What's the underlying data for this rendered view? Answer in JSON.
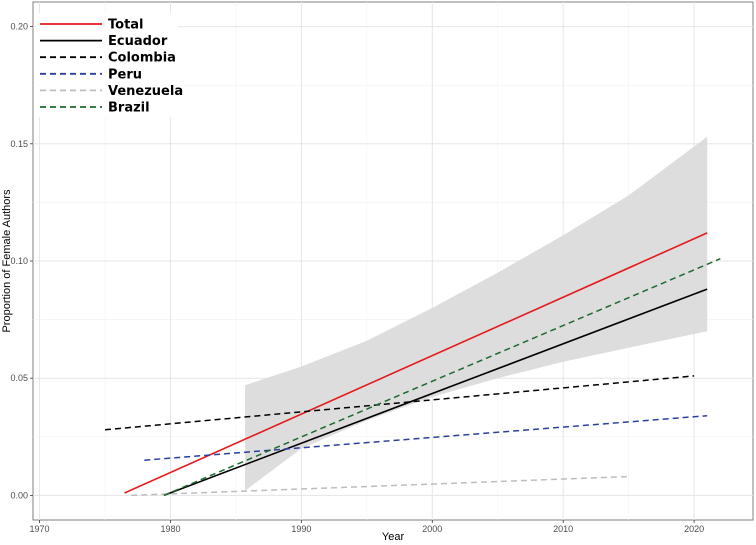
{
  "chart_data": {
    "type": "line",
    "xlabel": "Year",
    "ylabel": "Proportion of Female Authors",
    "xlim": [
      1969.5,
      2024.5
    ],
    "ylim": [
      -0.0105,
      0.2105
    ],
    "x_ticks": [
      1970,
      1980,
      1990,
      2000,
      2010,
      2020
    ],
    "x_tick_labels": [
      "1970",
      "1980",
      "1990",
      "2000",
      "2010",
      "2020"
    ],
    "y_ticks": [
      0.0,
      0.05,
      0.1,
      0.15,
      0.2
    ],
    "y_tick_labels": [
      "0.00",
      "0.05",
      "0.10",
      "0.15",
      "0.20"
    ],
    "grid": true,
    "legend_position": "top-left",
    "confidence_band": {
      "series": "Ecuador",
      "color": "#d9d9d9",
      "x": [
        1985.7,
        1990,
        1995,
        2000,
        2005,
        2010,
        2015,
        2021
      ],
      "upper": [
        0.047,
        0.055,
        0.066,
        0.08,
        0.095,
        0.111,
        0.128,
        0.153
      ],
      "lower": [
        0.002,
        0.02,
        0.032,
        0.042,
        0.05,
        0.057,
        0.063,
        0.07
      ]
    },
    "series": [
      {
        "name": "Total",
        "color": "#e41a1c",
        "dash": "solid",
        "x": [
          1976.5,
          2021
        ],
        "y": [
          0.001,
          0.112
        ]
      },
      {
        "name": "Ecuador",
        "color": "#000000",
        "dash": "solid",
        "x": [
          1979.5,
          2021
        ],
        "y": [
          0.0,
          0.088
        ]
      },
      {
        "name": "Colombia",
        "color": "#000000",
        "dash": "dashed",
        "x": [
          1975,
          2020
        ],
        "y": [
          0.028,
          0.051
        ]
      },
      {
        "name": "Peru",
        "color": "#2b3fa0",
        "dash": "dashed",
        "x": [
          1978,
          2021
        ],
        "y": [
          0.015,
          0.034
        ]
      },
      {
        "name": "Venezuela",
        "color": "#bdbdbd",
        "dash": "dashed",
        "x": [
          1977,
          2015
        ],
        "y": [
          0.0,
          0.008
        ]
      },
      {
        "name": "Brazil",
        "color": "#1b6b2f",
        "dash": "dashed",
        "x": [
          1979.5,
          2022
        ],
        "y": [
          0.0,
          0.101
        ]
      }
    ]
  }
}
